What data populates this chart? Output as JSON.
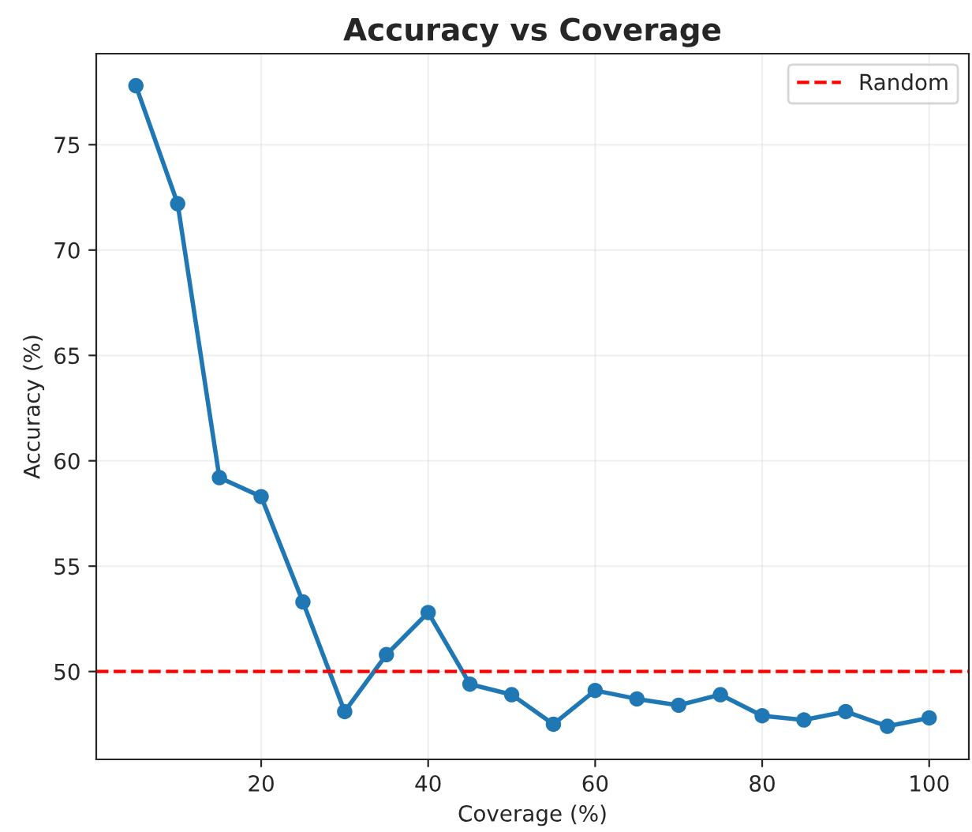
{
  "chart_data": {
    "type": "line",
    "title": "Accuracy vs Coverage",
    "xlabel": "Coverage (%)",
    "ylabel": "Accuracy (%)",
    "x": [
      5,
      10,
      15,
      20,
      25,
      30,
      35,
      40,
      45,
      50,
      55,
      60,
      65,
      70,
      75,
      80,
      85,
      90,
      95,
      100
    ],
    "series": [
      {
        "color": "#1f77b4",
        "values": [
          77.8,
          72.2,
          59.2,
          58.3,
          53.3,
          48.1,
          50.8,
          52.8,
          49.4,
          48.9,
          47.5,
          49.1,
          48.7,
          48.4,
          48.9,
          47.9,
          47.7,
          48.1,
          47.4,
          47.8
        ]
      }
    ],
    "ref_lines": [
      {
        "axis": "y",
        "value": 50,
        "label": "Random",
        "color": "#ff0000",
        "line_style": "dashed"
      }
    ],
    "xlim": [
      0.25,
      104.75
    ],
    "ylim": [
      45.83,
      79.32
    ],
    "xticks": [
      20,
      40,
      60,
      80,
      100
    ],
    "yticks": [
      50,
      55,
      60,
      65,
      70,
      75
    ],
    "grid": true,
    "legend": "top right",
    "marker": "circle",
    "line_style": "solid"
  }
}
